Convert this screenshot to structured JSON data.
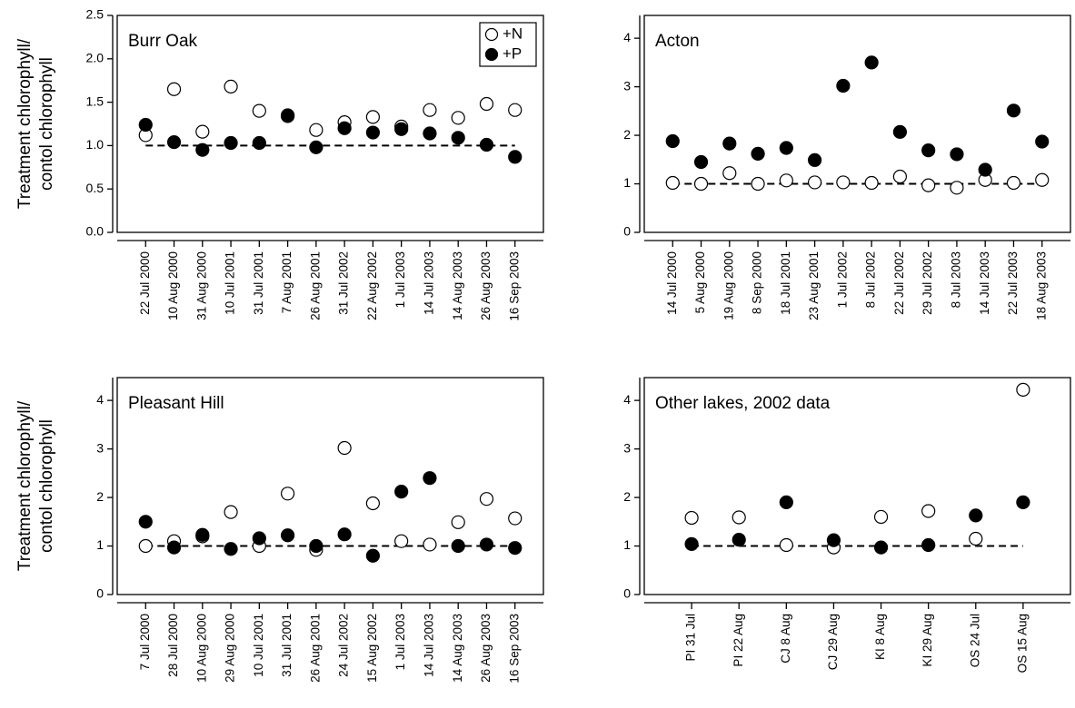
{
  "chart_data": [
    {
      "type": "scatter",
      "title": "Burr Oak",
      "ylabel": [
        "Treatment chlorophyll/",
        "contol chlorophyll"
      ],
      "categories": [
        "22 Jul 2000",
        "10 Aug 2000",
        "31 Aug 2000",
        "10 Jul 2001",
        "31 Jul 2001",
        "7 Aug 2001",
        "26 Aug 2001",
        "31 Jul 2002",
        "22 Aug 2002",
        "1 Jul 2003",
        "14 Jul 2003",
        "14 Aug 2003",
        "26 Aug 2003",
        "16 Sep 2003"
      ],
      "series": [
        {
          "name": "+N",
          "color": "#000000",
          "fill": "#ffffff",
          "values": [
            1.12,
            1.65,
            1.16,
            1.68,
            1.4,
            1.34,
            1.18,
            1.27,
            1.33,
            1.22,
            1.41,
            1.32,
            1.48,
            1.41
          ]
        },
        {
          "name": "+P",
          "color": "#000000",
          "fill": "#000000",
          "values": [
            1.24,
            1.04,
            0.95,
            1.03,
            1.03,
            1.35,
            0.98,
            1.2,
            1.15,
            1.19,
            1.14,
            1.09,
            1.01,
            0.87
          ]
        }
      ],
      "reference_line": 1,
      "ylim": [
        0,
        2.5
      ],
      "yticks": [
        {
          "value": 0,
          "label": "0.0"
        },
        0.5,
        {
          "value": 1,
          "label": "1.0"
        },
        1.5,
        {
          "value": 2,
          "label": "2.0"
        },
        2.5
      ],
      "legend": "upper right"
    },
    {
      "type": "scatter",
      "title": "Acton",
      "categories": [
        "14 Jul 2000",
        "5 Aug 2000",
        "19 Aug 2000",
        "8 Sep 2000",
        "18 Jul 2001",
        "23 Aug 2001",
        "1 Jul 2002",
        "8 Jul 2002",
        "22 Jul 2002",
        "29 Jul 2002",
        "8 Jul 2003",
        "14 Jul 2003",
        "22 Jul 2003",
        "18 Aug 2003"
      ],
      "series": [
        {
          "color": "#000000",
          "fill": "#ffffff",
          "values": [
            1.02,
            1.0,
            1.22,
            1.0,
            1.07,
            1.03,
            1.03,
            1.02,
            1.15,
            0.97,
            0.92,
            1.08,
            1.02,
            1.08
          ]
        },
        {
          "color": "#000000",
          "fill": "#000000",
          "values": [
            1.88,
            1.45,
            1.83,
            1.62,
            1.74,
            1.49,
            3.02,
            3.5,
            2.07,
            1.69,
            1.61,
            1.29,
            2.51,
            1.87
          ]
        }
      ],
      "reference_line": 1,
      "ylim": [
        0,
        4.47
      ],
      "yticks": [
        0,
        1,
        2,
        3,
        4
      ]
    },
    {
      "type": "scatter",
      "title": "Pleasant Hill",
      "ylabel": [
        "Treatment chlorophyll/",
        "contol chlorophyll"
      ],
      "categories": [
        "7 Jul 2000",
        "28 Jul 2000",
        "10 Aug 2000",
        "29 Aug 2000",
        "10 Jul 2001",
        "31 Jul 2001",
        "26 Aug 2001",
        "24 Jul 2002",
        "15 Aug 2002",
        "1 Jul 2003",
        "14 Jul 2003",
        "14 Aug 2003",
        "26 Aug 2003",
        "16 Sep 2003"
      ],
      "series": [
        {
          "color": "#000000",
          "fill": "#ffffff",
          "values": [
            1.0,
            1.1,
            1.2,
            1.7,
            1.0,
            2.08,
            0.92,
            3.02,
            1.88,
            1.1,
            1.03,
            1.49,
            1.97,
            1.57
          ]
        },
        {
          "color": "#000000",
          "fill": "#000000",
          "values": [
            1.5,
            0.97,
            1.23,
            0.94,
            1.16,
            1.22,
            1.0,
            1.24,
            0.8,
            2.12,
            2.4,
            1.0,
            1.03,
            0.96
          ]
        }
      ],
      "reference_line": 1,
      "ylim": [
        0,
        4.47
      ],
      "yticks": [
        0,
        1,
        2,
        3,
        4
      ]
    },
    {
      "type": "scatter",
      "title": "Other lakes, 2002 data",
      "categories": [
        "PI 31 Jul",
        "PI 22 Aug",
        "CJ 8 Aug",
        "CJ 29 Aug",
        "KI 8 Aug",
        "KI 29 Aug",
        "OS 24 Jul",
        "OS 15 Aug"
      ],
      "series": [
        {
          "color": "#000000",
          "fill": "#ffffff",
          "values": [
            1.58,
            1.59,
            1.02,
            0.97,
            1.6,
            1.72,
            1.15,
            4.22
          ]
        },
        {
          "color": "#000000",
          "fill": "#000000",
          "values": [
            1.04,
            1.13,
            1.9,
            1.12,
            0.97,
            1.02,
            1.63,
            1.9
          ]
        }
      ],
      "reference_line": 1,
      "ylim": [
        0,
        4.47
      ],
      "yticks": [
        0,
        1,
        2,
        3,
        4
      ]
    }
  ]
}
